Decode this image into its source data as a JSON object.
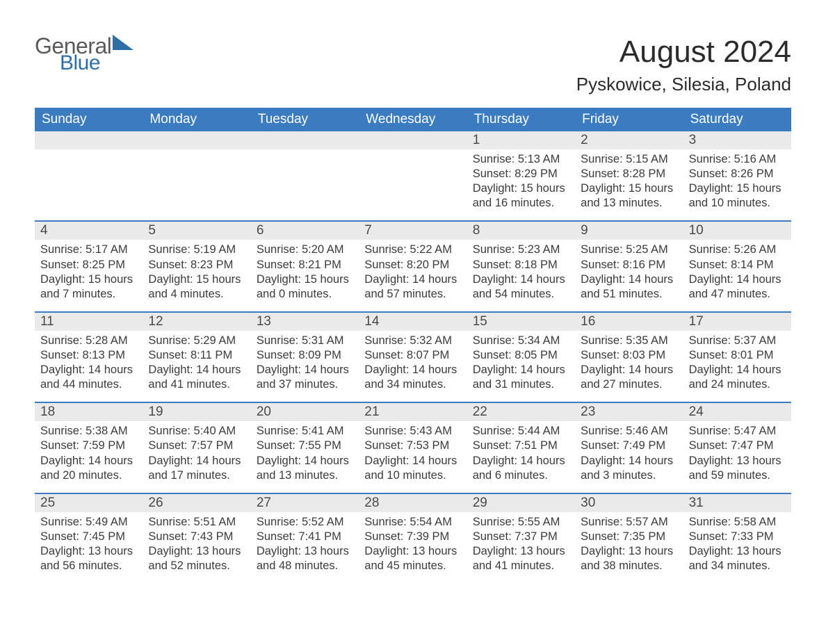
{
  "logo": {
    "word1": "General",
    "word2": "Blue"
  },
  "title": "August 2024",
  "location": "Pyskowice, Silesia, Poland",
  "weekdays": [
    "Sunday",
    "Monday",
    "Tuesday",
    "Wednesday",
    "Thursday",
    "Friday",
    "Saturday"
  ],
  "colors": {
    "header_blue": "#3b7bbf",
    "logo_gray": "#5a5a5a",
    "logo_blue": "#2f6fa8",
    "daynum_bg": "#eaeaea",
    "text": "#3b3b3b",
    "background": "#ffffff"
  },
  "layout": {
    "columns": 7,
    "rows": 5,
    "first_weekday_index": 4
  },
  "weeks": [
    [
      null,
      null,
      null,
      null,
      {
        "day": "1",
        "sunrise": "Sunrise: 5:13 AM",
        "sunset": "Sunset: 8:29 PM",
        "daylight1": "Daylight: 15 hours",
        "daylight2": "and 16 minutes."
      },
      {
        "day": "2",
        "sunrise": "Sunrise: 5:15 AM",
        "sunset": "Sunset: 8:28 PM",
        "daylight1": "Daylight: 15 hours",
        "daylight2": "and 13 minutes."
      },
      {
        "day": "3",
        "sunrise": "Sunrise: 5:16 AM",
        "sunset": "Sunset: 8:26 PM",
        "daylight1": "Daylight: 15 hours",
        "daylight2": "and 10 minutes."
      }
    ],
    [
      {
        "day": "4",
        "sunrise": "Sunrise: 5:17 AM",
        "sunset": "Sunset: 8:25 PM",
        "daylight1": "Daylight: 15 hours",
        "daylight2": "and 7 minutes."
      },
      {
        "day": "5",
        "sunrise": "Sunrise: 5:19 AM",
        "sunset": "Sunset: 8:23 PM",
        "daylight1": "Daylight: 15 hours",
        "daylight2": "and 4 minutes."
      },
      {
        "day": "6",
        "sunrise": "Sunrise: 5:20 AM",
        "sunset": "Sunset: 8:21 PM",
        "daylight1": "Daylight: 15 hours",
        "daylight2": "and 0 minutes."
      },
      {
        "day": "7",
        "sunrise": "Sunrise: 5:22 AM",
        "sunset": "Sunset: 8:20 PM",
        "daylight1": "Daylight: 14 hours",
        "daylight2": "and 57 minutes."
      },
      {
        "day": "8",
        "sunrise": "Sunrise: 5:23 AM",
        "sunset": "Sunset: 8:18 PM",
        "daylight1": "Daylight: 14 hours",
        "daylight2": "and 54 minutes."
      },
      {
        "day": "9",
        "sunrise": "Sunrise: 5:25 AM",
        "sunset": "Sunset: 8:16 PM",
        "daylight1": "Daylight: 14 hours",
        "daylight2": "and 51 minutes."
      },
      {
        "day": "10",
        "sunrise": "Sunrise: 5:26 AM",
        "sunset": "Sunset: 8:14 PM",
        "daylight1": "Daylight: 14 hours",
        "daylight2": "and 47 minutes."
      }
    ],
    [
      {
        "day": "11",
        "sunrise": "Sunrise: 5:28 AM",
        "sunset": "Sunset: 8:13 PM",
        "daylight1": "Daylight: 14 hours",
        "daylight2": "and 44 minutes."
      },
      {
        "day": "12",
        "sunrise": "Sunrise: 5:29 AM",
        "sunset": "Sunset: 8:11 PM",
        "daylight1": "Daylight: 14 hours",
        "daylight2": "and 41 minutes."
      },
      {
        "day": "13",
        "sunrise": "Sunrise: 5:31 AM",
        "sunset": "Sunset: 8:09 PM",
        "daylight1": "Daylight: 14 hours",
        "daylight2": "and 37 minutes."
      },
      {
        "day": "14",
        "sunrise": "Sunrise: 5:32 AM",
        "sunset": "Sunset: 8:07 PM",
        "daylight1": "Daylight: 14 hours",
        "daylight2": "and 34 minutes."
      },
      {
        "day": "15",
        "sunrise": "Sunrise: 5:34 AM",
        "sunset": "Sunset: 8:05 PM",
        "daylight1": "Daylight: 14 hours",
        "daylight2": "and 31 minutes."
      },
      {
        "day": "16",
        "sunrise": "Sunrise: 5:35 AM",
        "sunset": "Sunset: 8:03 PM",
        "daylight1": "Daylight: 14 hours",
        "daylight2": "and 27 minutes."
      },
      {
        "day": "17",
        "sunrise": "Sunrise: 5:37 AM",
        "sunset": "Sunset: 8:01 PM",
        "daylight1": "Daylight: 14 hours",
        "daylight2": "and 24 minutes."
      }
    ],
    [
      {
        "day": "18",
        "sunrise": "Sunrise: 5:38 AM",
        "sunset": "Sunset: 7:59 PM",
        "daylight1": "Daylight: 14 hours",
        "daylight2": "and 20 minutes."
      },
      {
        "day": "19",
        "sunrise": "Sunrise: 5:40 AM",
        "sunset": "Sunset: 7:57 PM",
        "daylight1": "Daylight: 14 hours",
        "daylight2": "and 17 minutes."
      },
      {
        "day": "20",
        "sunrise": "Sunrise: 5:41 AM",
        "sunset": "Sunset: 7:55 PM",
        "daylight1": "Daylight: 14 hours",
        "daylight2": "and 13 minutes."
      },
      {
        "day": "21",
        "sunrise": "Sunrise: 5:43 AM",
        "sunset": "Sunset: 7:53 PM",
        "daylight1": "Daylight: 14 hours",
        "daylight2": "and 10 minutes."
      },
      {
        "day": "22",
        "sunrise": "Sunrise: 5:44 AM",
        "sunset": "Sunset: 7:51 PM",
        "daylight1": "Daylight: 14 hours",
        "daylight2": "and 6 minutes."
      },
      {
        "day": "23",
        "sunrise": "Sunrise: 5:46 AM",
        "sunset": "Sunset: 7:49 PM",
        "daylight1": "Daylight: 14 hours",
        "daylight2": "and 3 minutes."
      },
      {
        "day": "24",
        "sunrise": "Sunrise: 5:47 AM",
        "sunset": "Sunset: 7:47 PM",
        "daylight1": "Daylight: 13 hours",
        "daylight2": "and 59 minutes."
      }
    ],
    [
      {
        "day": "25",
        "sunrise": "Sunrise: 5:49 AM",
        "sunset": "Sunset: 7:45 PM",
        "daylight1": "Daylight: 13 hours",
        "daylight2": "and 56 minutes."
      },
      {
        "day": "26",
        "sunrise": "Sunrise: 5:51 AM",
        "sunset": "Sunset: 7:43 PM",
        "daylight1": "Daylight: 13 hours",
        "daylight2": "and 52 minutes."
      },
      {
        "day": "27",
        "sunrise": "Sunrise: 5:52 AM",
        "sunset": "Sunset: 7:41 PM",
        "daylight1": "Daylight: 13 hours",
        "daylight2": "and 48 minutes."
      },
      {
        "day": "28",
        "sunrise": "Sunrise: 5:54 AM",
        "sunset": "Sunset: 7:39 PM",
        "daylight1": "Daylight: 13 hours",
        "daylight2": "and 45 minutes."
      },
      {
        "day": "29",
        "sunrise": "Sunrise: 5:55 AM",
        "sunset": "Sunset: 7:37 PM",
        "daylight1": "Daylight: 13 hours",
        "daylight2": "and 41 minutes."
      },
      {
        "day": "30",
        "sunrise": "Sunrise: 5:57 AM",
        "sunset": "Sunset: 7:35 PM",
        "daylight1": "Daylight: 13 hours",
        "daylight2": "and 38 minutes."
      },
      {
        "day": "31",
        "sunrise": "Sunrise: 5:58 AM",
        "sunset": "Sunset: 7:33 PM",
        "daylight1": "Daylight: 13 hours",
        "daylight2": "and 34 minutes."
      }
    ]
  ]
}
